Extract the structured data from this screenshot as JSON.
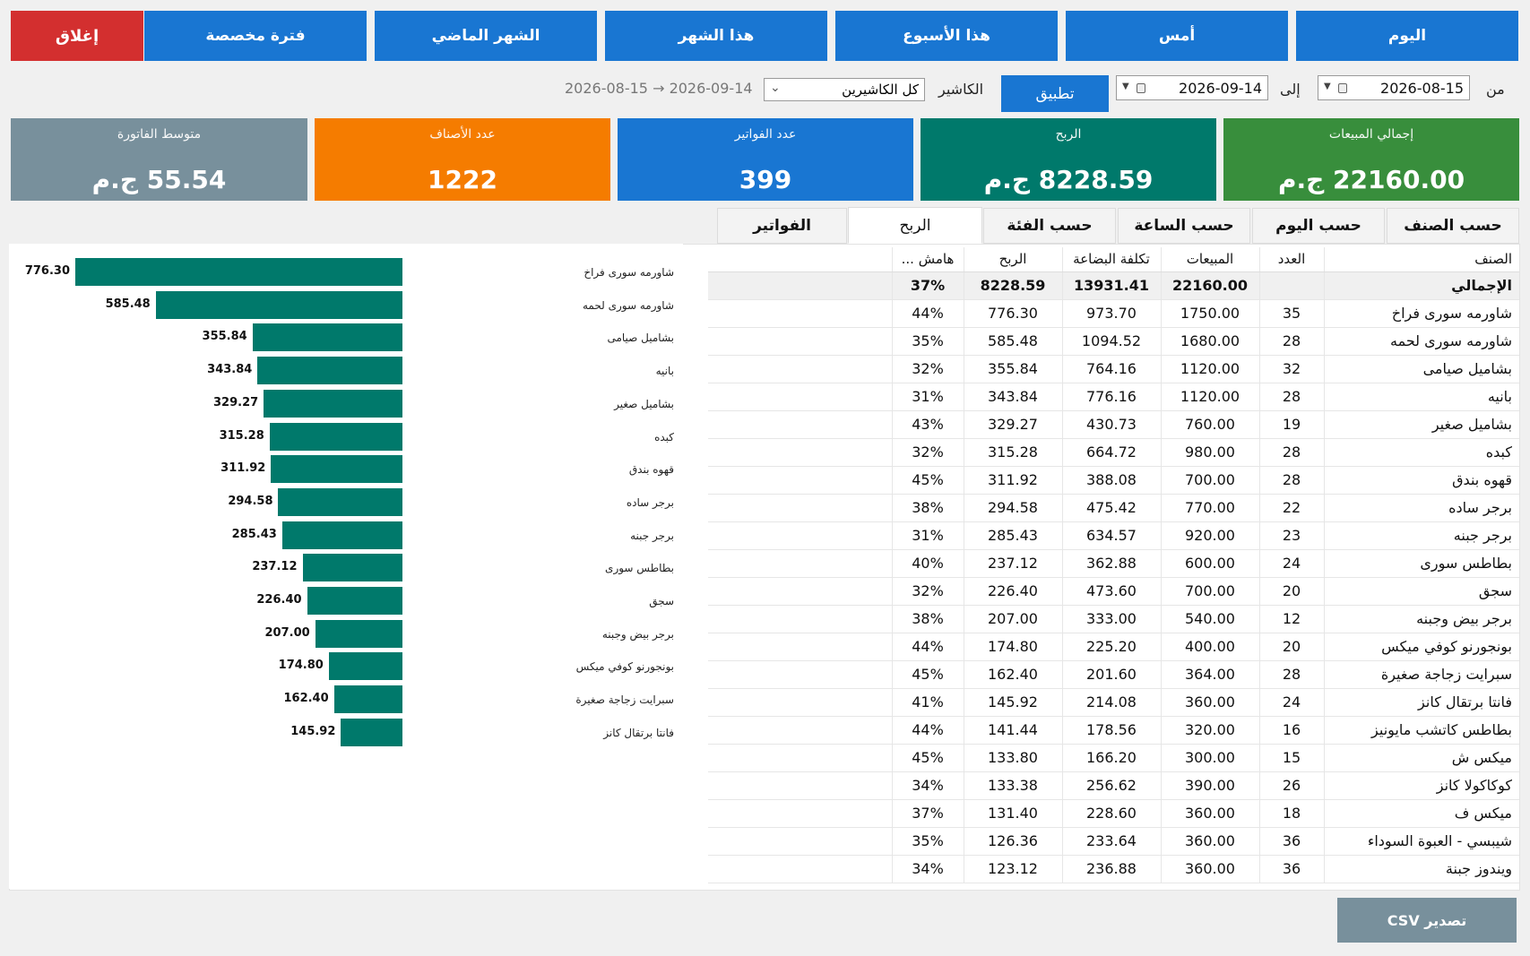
{
  "quick_ranges": [
    "اليوم",
    "أمس",
    "هذا الأسبوع",
    "هذا الشهر",
    "الشهر الماضي",
    "فترة مخصصة"
  ],
  "close_label": "إغلاق",
  "filters": {
    "from_label": "من",
    "from_date": "2026-08-15",
    "to_label": "إلى",
    "to_date": "2026-09-14",
    "apply_label": "تطبيق",
    "cashier_label": "الكاشير",
    "cashier_value": "كل الكاشيرين",
    "range_text": "2026-08-15 → 2026-09-14"
  },
  "cards": [
    {
      "title": "إجمالي المبيعات",
      "value": "22160.00 ج.م",
      "color": "#388e3c"
    },
    {
      "title": "الربح",
      "value": "8228.59 ج.م",
      "color": "#00796b"
    },
    {
      "title": "عدد الفواتير",
      "value": "399",
      "color": "#1976d2"
    },
    {
      "title": "عدد الأصناف",
      "value": "1222",
      "color": "#f57c00"
    },
    {
      "title": "متوسط الفاتورة",
      "value": "55.54 ج.م",
      "color": "#78909c"
    }
  ],
  "tabs": [
    "حسب الصنف",
    "حسب اليوم",
    "حسب الساعة",
    "حسب الفئة",
    "الربح",
    "الفواتير"
  ],
  "active_tab": 4,
  "table": {
    "headers": [
      "الصنف",
      "العدد",
      "المبيعات",
      "تكلفة البضاعة",
      "الربح",
      "هامش ..."
    ],
    "total": [
      "الإجمالي",
      "",
      "22160.00",
      "13931.41",
      "8228.59",
      "37%"
    ],
    "rows": [
      [
        "شاورمه سورى فراخ",
        "35",
        "1750.00",
        "973.70",
        "776.30",
        "44%"
      ],
      [
        "شاورمه سورى لحمه",
        "28",
        "1680.00",
        "1094.52",
        "585.48",
        "35%"
      ],
      [
        "بشاميل صيامى",
        "32",
        "1120.00",
        "764.16",
        "355.84",
        "32%"
      ],
      [
        "بانيه",
        "28",
        "1120.00",
        "776.16",
        "343.84",
        "31%"
      ],
      [
        "بشاميل صغير",
        "19",
        "760.00",
        "430.73",
        "329.27",
        "43%"
      ],
      [
        "كبده",
        "28",
        "980.00",
        "664.72",
        "315.28",
        "32%"
      ],
      [
        "قهوه بندق",
        "28",
        "700.00",
        "388.08",
        "311.92",
        "45%"
      ],
      [
        "برجر ساده",
        "22",
        "770.00",
        "475.42",
        "294.58",
        "38%"
      ],
      [
        "برجر جبنه",
        "23",
        "920.00",
        "634.57",
        "285.43",
        "31%"
      ],
      [
        "بطاطس سورى",
        "24",
        "600.00",
        "362.88",
        "237.12",
        "40%"
      ],
      [
        "سجق",
        "20",
        "700.00",
        "473.60",
        "226.40",
        "32%"
      ],
      [
        "برجر بيض وجبنه",
        "12",
        "540.00",
        "333.00",
        "207.00",
        "38%"
      ],
      [
        "بونجورنو كوفي ميكس",
        "20",
        "400.00",
        "225.20",
        "174.80",
        "44%"
      ],
      [
        "سبرايت زجاجة صغيرة",
        "28",
        "364.00",
        "201.60",
        "162.40",
        "45%"
      ],
      [
        "فانتا برتقال كانز",
        "24",
        "360.00",
        "214.08",
        "145.92",
        "41%"
      ],
      [
        "بطاطس كاتشب مايونيز",
        "16",
        "320.00",
        "178.56",
        "141.44",
        "44%"
      ],
      [
        "ميكس ش",
        "15",
        "300.00",
        "166.20",
        "133.80",
        "45%"
      ],
      [
        "كوكاكولا كانز",
        "26",
        "390.00",
        "256.62",
        "133.38",
        "34%"
      ],
      [
        "ميكس ف",
        "18",
        "360.00",
        "228.60",
        "131.40",
        "37%"
      ],
      [
        "شيبسي - العبوة السوداء",
        "36",
        "360.00",
        "233.64",
        "126.36",
        "35%"
      ],
      [
        "ويندوز جبنة",
        "36",
        "360.00",
        "236.88",
        "123.12",
        "34%"
      ]
    ]
  },
  "chart_data": {
    "type": "bar",
    "orientation": "horizontal",
    "bar_color": "#00796b",
    "categories": [
      "شاورمه سورى فراخ",
      "شاورمه سورى لحمه",
      "بشاميل صيامى",
      "بانيه",
      "بشاميل صغير",
      "كبده",
      "قهوه بندق",
      "برجر ساده",
      "برجر جبنه",
      "بطاطس سورى",
      "سجق",
      "برجر بيض وجبنه",
      "بونجورنو كوفي ميكس",
      "سبرايت زجاجة صغيرة",
      "فانتا برتقال كانز"
    ],
    "values": [
      776.3,
      585.48,
      355.84,
      343.84,
      329.27,
      315.28,
      311.92,
      294.58,
      285.43,
      237.12,
      226.4,
      207.0,
      174.8,
      162.4,
      145.92
    ],
    "value_labels": [
      "776.30",
      "585.48",
      "355.84",
      "343.84",
      "329.27",
      "315.28",
      "311.92",
      "294.58",
      "285.43",
      "237.12",
      "226.40",
      "207.00",
      "174.80",
      "162.40",
      "145.92"
    ],
    "title": "",
    "xlabel": "",
    "ylabel": "",
    "xlim": [
      0,
      776.3
    ]
  },
  "export_label": "تصدير CSV"
}
